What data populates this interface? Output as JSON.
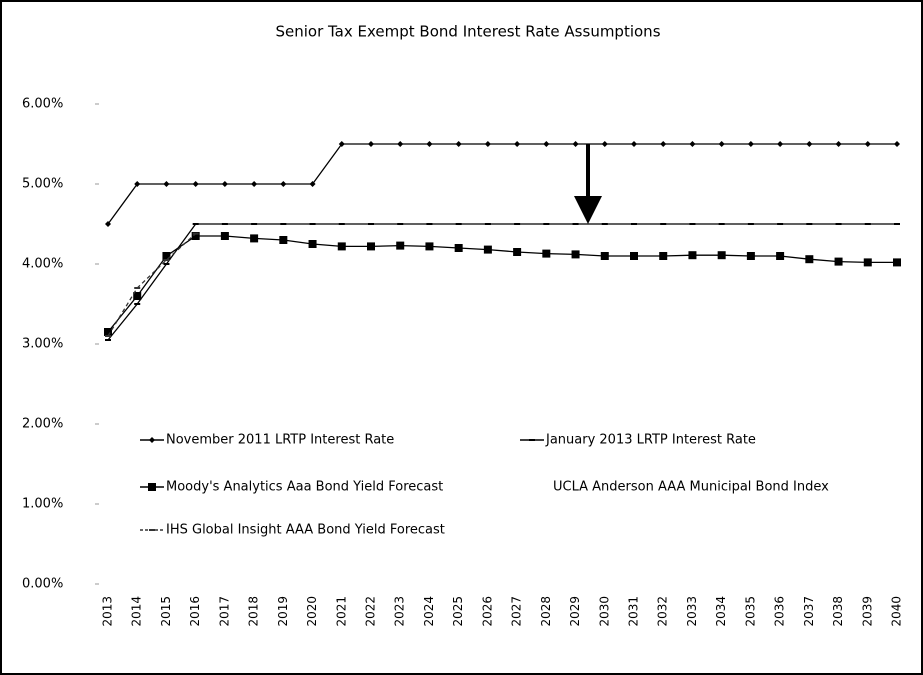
{
  "chart_data": {
    "type": "line",
    "title": "Senior Tax Exempt Bond Interest Rate Assumptions",
    "categories": [
      "2013",
      "2014",
      "2015",
      "2016",
      "2017",
      "2018",
      "2019",
      "2020",
      "2021",
      "2022",
      "2023",
      "2024",
      "2025",
      "2026",
      "2027",
      "2028",
      "2029",
      "2030",
      "2031",
      "2032",
      "2033",
      "2034",
      "2035",
      "2036",
      "2037",
      "2038",
      "2039",
      "2040"
    ],
    "series": [
      {
        "name": "November 2011 LRTP Interest Rate",
        "color": "#000000",
        "marker": "diamond",
        "values": [
          4.5,
          5.0,
          5.0,
          5.0,
          5.0,
          5.0,
          5.0,
          5.0,
          5.5,
          5.5,
          5.5,
          5.5,
          5.5,
          5.5,
          5.5,
          5.5,
          5.5,
          5.5,
          5.5,
          5.5,
          5.5,
          5.5,
          5.5,
          5.5,
          5.5,
          5.5,
          5.5,
          5.5
        ]
      },
      {
        "name": "January 2013 LRTP Interest Rate",
        "color": "#000000",
        "marker": "dash",
        "values": [
          3.05,
          3.5,
          4.0,
          4.5,
          4.5,
          4.5,
          4.5,
          4.5,
          4.5,
          4.5,
          4.5,
          4.5,
          4.5,
          4.5,
          4.5,
          4.5,
          4.5,
          4.5,
          4.5,
          4.5,
          4.5,
          4.5,
          4.5,
          4.5,
          4.5,
          4.5,
          4.5,
          4.5
        ]
      },
      {
        "name": "Moody's Analytics Aaa Bond Yield Forecast",
        "color": "#000000",
        "marker": "square",
        "values": [
          3.15,
          3.6,
          4.1,
          4.35,
          4.35,
          4.32,
          4.3,
          4.25,
          4.22,
          4.22,
          4.23,
          4.22,
          4.2,
          4.18,
          4.15,
          4.13,
          4.12,
          4.1,
          4.1,
          4.1,
          4.11,
          4.11,
          4.1,
          4.1,
          4.06,
          4.03,
          4.02,
          4.02
        ]
      },
      {
        "name": "UCLA Anderson AAA Municipal Bond Index",
        "color": "#ffffff",
        "marker": "none",
        "values": [
          null,
          null,
          null,
          null,
          null,
          null,
          null,
          null,
          null,
          null,
          null,
          null,
          null,
          null,
          null,
          null,
          null,
          null,
          null,
          null,
          null,
          null,
          null,
          null,
          null,
          null,
          null,
          null
        ]
      },
      {
        "name": "IHS Global Insight AAA Bond Yield Forecast",
        "color": "#333333",
        "marker": "dash",
        "dashed": true,
        "values": [
          3.1,
          3.7,
          4.05,
          4.38,
          null,
          null,
          null,
          null,
          null,
          null,
          null,
          null,
          null,
          null,
          null,
          null,
          null,
          null,
          null,
          null,
          null,
          null,
          null,
          null,
          null,
          null,
          null,
          null
        ]
      }
    ],
    "ylim": [
      0,
      6
    ],
    "yticks": [
      {
        "value": 0,
        "label": "0.00%"
      },
      {
        "value": 1,
        "label": "1.00%"
      },
      {
        "value": 2,
        "label": "2.00%"
      },
      {
        "value": 3,
        "label": "3.00%"
      },
      {
        "value": 4,
        "label": "4.00%"
      },
      {
        "value": 5,
        "label": "5.00%"
      },
      {
        "value": 6,
        "label": "6.00%"
      }
    ],
    "grid": false
  }
}
